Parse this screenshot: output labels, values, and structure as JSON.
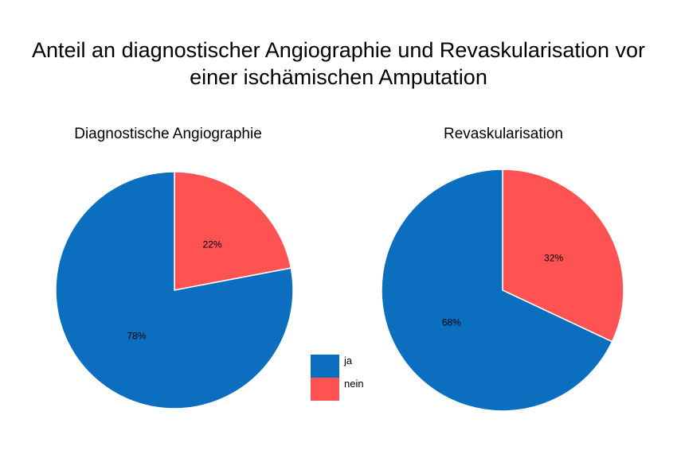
{
  "title_line1": "Anteil an diagnostischer Angiographie und Revaskularisation vor",
  "title_line2": "einer ischämischen Amputation",
  "colors": {
    "ja": "#0b6ebf",
    "nein": "#ff5252"
  },
  "legend": [
    {
      "label": "ja",
      "color": "#0b6ebf"
    },
    {
      "label": "nein",
      "color": "#ff5252"
    }
  ],
  "chart_data": [
    {
      "type": "pie",
      "title": "Diagnostische Angiographie",
      "slices": [
        {
          "label": "nein",
          "value": 22,
          "text": "22%"
        },
        {
          "label": "ja",
          "value": 78,
          "text": "78%"
        }
      ]
    },
    {
      "type": "pie",
      "title": "Revaskularisation",
      "slices": [
        {
          "label": "nein",
          "value": 32,
          "text": "32%"
        },
        {
          "label": "ja",
          "value": 68,
          "text": "68%"
        }
      ]
    }
  ]
}
